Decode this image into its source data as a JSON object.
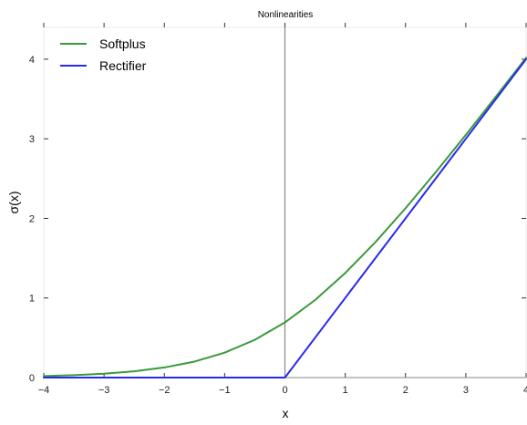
{
  "chart_data": {
    "type": "line",
    "title": "Nonlinearities",
    "xlabel": "x",
    "ylabel": "σ(x)",
    "xlim": [
      -4,
      4
    ],
    "ylim": [
      0,
      4.4
    ],
    "xticks": [
      -4,
      -3,
      -2,
      -1,
      0,
      1,
      2,
      3,
      4
    ],
    "yticks": [
      0,
      1,
      2,
      3,
      4
    ],
    "xtick_labels": [
      "−4",
      "−3",
      "−2",
      "−1",
      "0",
      "1",
      "2",
      "3",
      "4"
    ],
    "ytick_labels": [
      "0",
      "1",
      "2",
      "3",
      "4"
    ],
    "grid": false,
    "legend_position": "top-left",
    "series": [
      {
        "name": "Softplus",
        "color": "#3a9a3a",
        "x": [
          -4,
          -3.5,
          -3,
          -2.5,
          -2,
          -1.5,
          -1,
          -0.5,
          0,
          0.5,
          1,
          1.5,
          2,
          2.5,
          3,
          3.5,
          4
        ],
        "y": [
          0.018,
          0.03,
          0.049,
          0.079,
          0.127,
          0.201,
          0.313,
          0.474,
          0.693,
          0.974,
          1.313,
          1.701,
          2.127,
          2.579,
          3.049,
          3.53,
          4.018
        ]
      },
      {
        "name": "Rectifier",
        "color": "#2a2aee",
        "x": [
          -4,
          0,
          4
        ],
        "y": [
          0,
          0,
          4
        ]
      }
    ]
  }
}
